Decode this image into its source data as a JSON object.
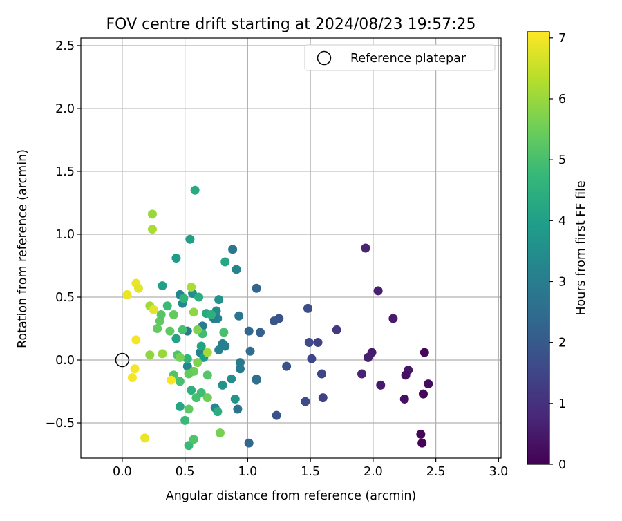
{
  "chart_data": {
    "type": "scatter",
    "title": "FOV centre drift starting at 2024/08/23 19:57:25",
    "xlabel": "Angular distance from reference (arcmin)",
    "ylabel": "Rotation from reference (arcmin)",
    "xlim": [
      -0.33,
      3.02
    ],
    "ylim": [
      -0.78,
      2.56
    ],
    "xticks": [
      0.0,
      0.5,
      1.0,
      1.5,
      2.0,
      2.5,
      3.0
    ],
    "xtick_labels": [
      "0.0",
      "0.5",
      "1.0",
      "1.5",
      "2.0",
      "2.5",
      "3.0"
    ],
    "yticks": [
      -0.5,
      0.0,
      0.5,
      1.0,
      1.5,
      2.0,
      2.5
    ],
    "ytick_labels": [
      "−0.5",
      "0.0",
      "0.5",
      "1.0",
      "1.5",
      "2.0",
      "2.5"
    ],
    "grid": true,
    "legend": {
      "placement": "upper right",
      "entries": [
        {
          "label": "Reference platepar",
          "marker": "open-circle",
          "x": 0.0,
          "y": 0.0
        }
      ]
    },
    "colorbar": {
      "label": "Hours from first FF file",
      "colormap": "viridis",
      "range": [
        0,
        7.1
      ],
      "ticks": [
        0,
        1,
        2,
        3,
        4,
        5,
        6,
        7
      ],
      "tick_labels": [
        "0",
        "1",
        "2",
        "3",
        "4",
        "5",
        "6",
        "7"
      ]
    },
    "points": [
      {
        "x": 1.94,
        "y": 0.89,
        "c": 0.7
      },
      {
        "x": 2.04,
        "y": 0.55,
        "c": 0.6
      },
      {
        "x": 2.16,
        "y": 0.33,
        "c": 0.5
      },
      {
        "x": 1.99,
        "y": 0.06,
        "c": 0.5
      },
      {
        "x": 1.96,
        "y": 0.02,
        "c": 0.6
      },
      {
        "x": 2.41,
        "y": 0.06,
        "c": 0.1
      },
      {
        "x": 1.91,
        "y": -0.11,
        "c": 0.7
      },
      {
        "x": 2.06,
        "y": -0.2,
        "c": 0.5
      },
      {
        "x": 2.28,
        "y": -0.08,
        "c": 0.4
      },
      {
        "x": 2.26,
        "y": -0.12,
        "c": 0.3
      },
      {
        "x": 2.25,
        "y": -0.31,
        "c": 0.3
      },
      {
        "x": 2.4,
        "y": -0.27,
        "c": 0.1
      },
      {
        "x": 2.44,
        "y": -0.19,
        "c": 0.2
      },
      {
        "x": 2.38,
        "y": -0.59,
        "c": 0.1
      },
      {
        "x": 2.39,
        "y": -0.66,
        "c": 0.05
      },
      {
        "x": 1.71,
        "y": 0.24,
        "c": 1.2
      },
      {
        "x": 1.56,
        "y": 0.14,
        "c": 1.4
      },
      {
        "x": 1.49,
        "y": 0.14,
        "c": 1.6
      },
      {
        "x": 1.51,
        "y": 0.01,
        "c": 1.5
      },
      {
        "x": 1.48,
        "y": 0.41,
        "c": 1.7
      },
      {
        "x": 1.59,
        "y": -0.11,
        "c": 1.5
      },
      {
        "x": 1.6,
        "y": -0.3,
        "c": 1.4
      },
      {
        "x": 1.46,
        "y": -0.33,
        "c": 1.6
      },
      {
        "x": 1.31,
        "y": -0.05,
        "c": 1.8
      },
      {
        "x": 1.25,
        "y": 0.33,
        "c": 1.8
      },
      {
        "x": 1.21,
        "y": 0.31,
        "c": 1.9
      },
      {
        "x": 1.23,
        "y": -0.44,
        "c": 1.8
      },
      {
        "x": 1.1,
        "y": 0.22,
        "c": 2.2
      },
      {
        "x": 1.07,
        "y": 0.57,
        "c": 2.3
      },
      {
        "x": 1.01,
        "y": 0.23,
        "c": 2.4
      },
      {
        "x": 1.02,
        "y": 0.07,
        "c": 2.5
      },
      {
        "x": 1.07,
        "y": -0.15,
        "c": 2.6
      },
      {
        "x": 1.07,
        "y": -0.16,
        "c": 2.6
      },
      {
        "x": 1.01,
        "y": -0.66,
        "c": 2.4
      },
      {
        "x": 0.93,
        "y": 0.35,
        "c": 2.8
      },
      {
        "x": 0.94,
        "y": -0.02,
        "c": 2.9
      },
      {
        "x": 0.94,
        "y": -0.07,
        "c": 2.9
      },
      {
        "x": 0.92,
        "y": -0.39,
        "c": 2.7
      },
      {
        "x": 0.88,
        "y": 0.88,
        "c": 2.8
      },
      {
        "x": 0.91,
        "y": 0.72,
        "c": 3.2
      },
      {
        "x": 0.82,
        "y": 0.11,
        "c": 3.0
      },
      {
        "x": 0.8,
        "y": 0.13,
        "c": 3.1
      },
      {
        "x": 0.77,
        "y": 0.08,
        "c": 3.1
      },
      {
        "x": 0.76,
        "y": 0.33,
        "c": 3.2
      },
      {
        "x": 0.75,
        "y": 0.39,
        "c": 3.4
      },
      {
        "x": 0.73,
        "y": 0.33,
        "c": 3.0
      },
      {
        "x": 0.77,
        "y": 0.48,
        "c": 3.6
      },
      {
        "x": 0.8,
        "y": -0.2,
        "c": 3.6
      },
      {
        "x": 0.87,
        "y": -0.15,
        "c": 3.5
      },
      {
        "x": 0.74,
        "y": -0.38,
        "c": 3.3
      },
      {
        "x": 0.9,
        "y": -0.31,
        "c": 3.7
      },
      {
        "x": 0.64,
        "y": 0.27,
        "c": 3.0
      },
      {
        "x": 0.62,
        "y": 0.06,
        "c": 3.1
      },
      {
        "x": 0.52,
        "y": 0.23,
        "c": 2.9
      },
      {
        "x": 0.52,
        "y": -0.05,
        "c": 3.3
      },
      {
        "x": 0.48,
        "y": 0.45,
        "c": 3.3
      },
      {
        "x": 0.46,
        "y": 0.52,
        "c": 3.2
      },
      {
        "x": 0.56,
        "y": 0.53,
        "c": 3.5
      },
      {
        "x": 0.43,
        "y": 0.81,
        "c": 3.9
      },
      {
        "x": 0.54,
        "y": 0.96,
        "c": 4.0
      },
      {
        "x": 0.82,
        "y": 0.78,
        "c": 4.2
      },
      {
        "x": 0.58,
        "y": 1.35,
        "c": 4.3
      },
      {
        "x": 0.32,
        "y": 0.59,
        "c": 4.0
      },
      {
        "x": 0.43,
        "y": 0.17,
        "c": 4.1
      },
      {
        "x": 0.65,
        "y": 0.02,
        "c": 3.9
      },
      {
        "x": 0.49,
        "y": 0.49,
        "c": 4.6
      },
      {
        "x": 0.61,
        "y": 0.5,
        "c": 4.4
      },
      {
        "x": 0.67,
        "y": 0.37,
        "c": 4.3
      },
      {
        "x": 0.71,
        "y": 0.36,
        "c": 4.5
      },
      {
        "x": 0.63,
        "y": 0.11,
        "c": 4.1
      },
      {
        "x": 0.46,
        "y": -0.37,
        "c": 4.2
      },
      {
        "x": 0.55,
        "y": -0.24,
        "c": 4.5
      },
      {
        "x": 0.76,
        "y": -0.41,
        "c": 4.4
      },
      {
        "x": 0.52,
        "y": 0.01,
        "c": 4.6
      },
      {
        "x": 0.36,
        "y": 0.43,
        "c": 4.8
      },
      {
        "x": 0.64,
        "y": 0.21,
        "c": 4.9
      },
      {
        "x": 0.81,
        "y": 0.22,
        "c": 5.0
      },
      {
        "x": 0.68,
        "y": -0.12,
        "c": 5.2
      },
      {
        "x": 0.5,
        "y": -0.48,
        "c": 4.8
      },
      {
        "x": 0.53,
        "y": -0.68,
        "c": 4.8
      },
      {
        "x": 0.57,
        "y": -0.63,
        "c": 5.1
      },
      {
        "x": 0.59,
        "y": -0.3,
        "c": 5.0
      },
      {
        "x": 0.63,
        "y": -0.26,
        "c": 4.9
      },
      {
        "x": 0.46,
        "y": -0.17,
        "c": 5.0
      },
      {
        "x": 0.41,
        "y": -0.12,
        "c": 5.1
      },
      {
        "x": 0.44,
        "y": 0.04,
        "c": 5.1
      },
      {
        "x": 0.48,
        "y": 0.24,
        "c": 5.0
      },
      {
        "x": 0.38,
        "y": 0.23,
        "c": 5.3
      },
      {
        "x": 0.3,
        "y": 0.31,
        "c": 5.3
      },
      {
        "x": 0.31,
        "y": 0.36,
        "c": 5.2
      },
      {
        "x": 0.28,
        "y": 0.25,
        "c": 5.4
      },
      {
        "x": 0.41,
        "y": 0.36,
        "c": 5.4
      },
      {
        "x": 0.57,
        "y": -0.09,
        "c": 5.5
      },
      {
        "x": 0.6,
        "y": -0.02,
        "c": 5.7
      },
      {
        "x": 0.68,
        "y": -0.3,
        "c": 5.5
      },
      {
        "x": 0.78,
        "y": -0.58,
        "c": 5.6
      },
      {
        "x": 0.53,
        "y": -0.39,
        "c": 5.3
      },
      {
        "x": 0.53,
        "y": -0.11,
        "c": 5.4
      },
      {
        "x": 0.46,
        "y": 0.02,
        "c": 5.6
      },
      {
        "x": 0.6,
        "y": 0.24,
        "c": 5.7
      },
      {
        "x": 0.57,
        "y": 0.38,
        "c": 5.9
      },
      {
        "x": 0.22,
        "y": 0.04,
        "c": 5.9
      },
      {
        "x": 0.32,
        "y": 0.05,
        "c": 6.0
      },
      {
        "x": 0.55,
        "y": 0.58,
        "c": 6.2
      },
      {
        "x": 0.68,
        "y": 0.06,
        "c": 6.1
      },
      {
        "x": 0.22,
        "y": 0.43,
        "c": 6.1
      },
      {
        "x": 0.24,
        "y": 1.16,
        "c": 6.0
      },
      {
        "x": 0.24,
        "y": 1.04,
        "c": 6.2
      },
      {
        "x": 0.25,
        "y": 0.4,
        "c": 6.8
      },
      {
        "x": 0.04,
        "y": 0.52,
        "c": 6.9
      },
      {
        "x": 0.11,
        "y": 0.61,
        "c": 6.9
      },
      {
        "x": 0.13,
        "y": 0.57,
        "c": 6.8
      },
      {
        "x": 0.11,
        "y": 0.16,
        "c": 7.0
      },
      {
        "x": 0.1,
        "y": -0.07,
        "c": 7.0
      },
      {
        "x": 0.08,
        "y": -0.14,
        "c": 7.0
      },
      {
        "x": 0.39,
        "y": -0.16,
        "c": 7.0
      },
      {
        "x": 0.18,
        "y": -0.62,
        "c": 6.9
      }
    ]
  }
}
